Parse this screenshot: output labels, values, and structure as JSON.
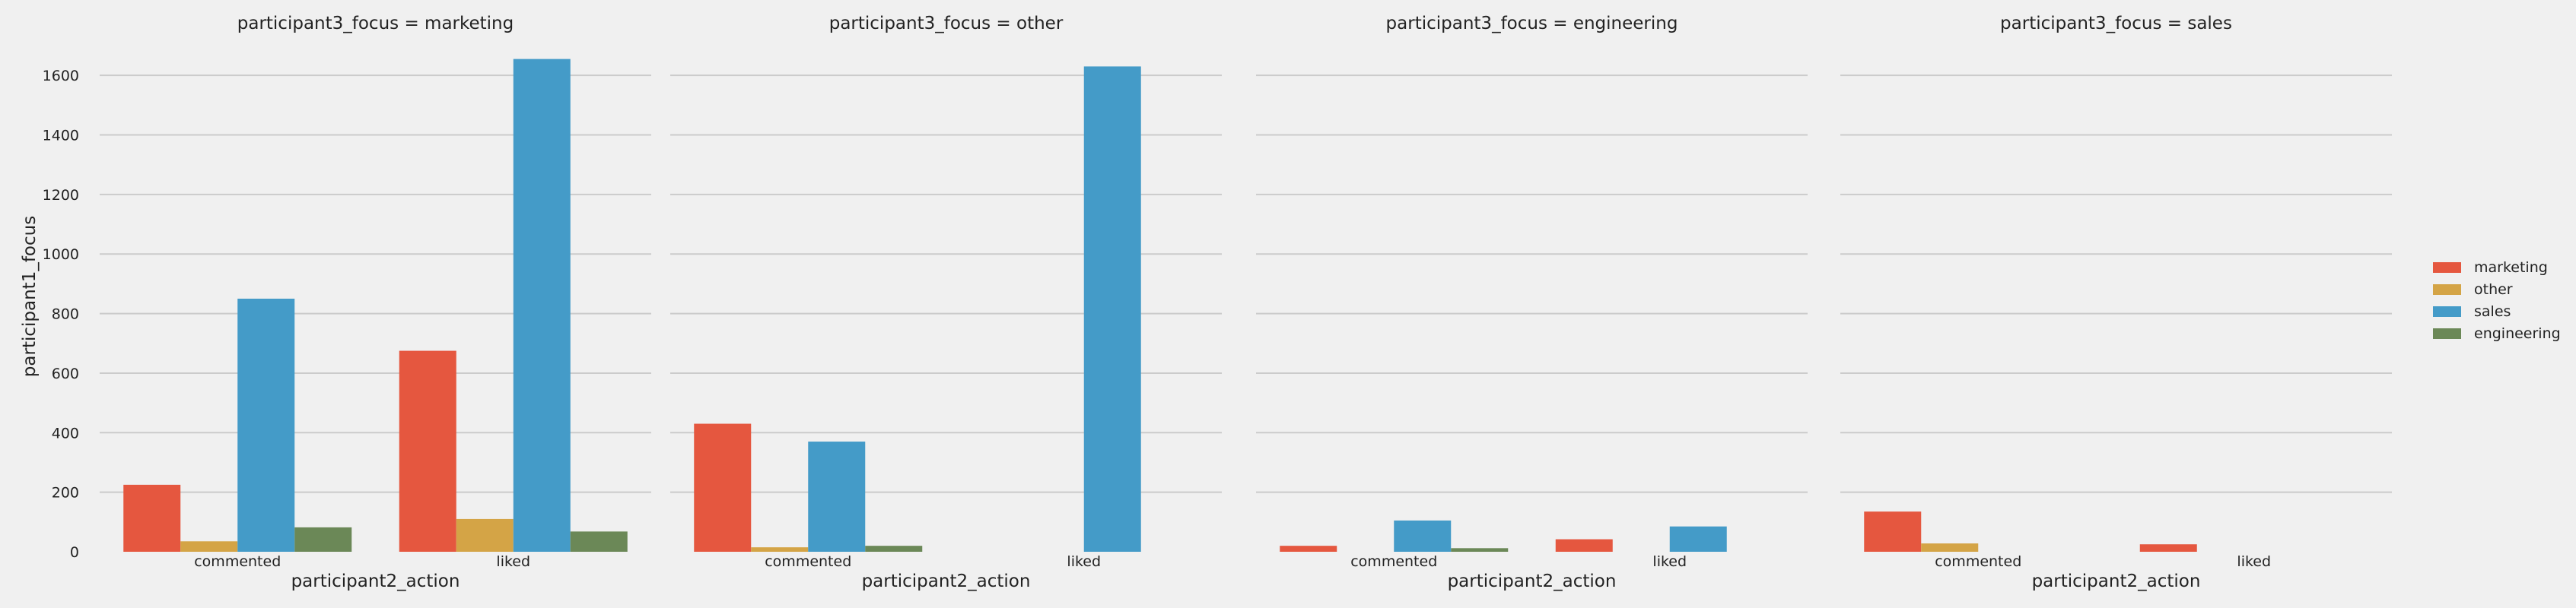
{
  "chart_data": {
    "type": "bar",
    "ylabel": "participant1_focus",
    "xlabel": "participant2_action",
    "ylim": [
      0,
      1700
    ],
    "yticks": [
      "0",
      "200",
      "400",
      "600",
      "800",
      "1000",
      "1200",
      "1400",
      "1600"
    ],
    "grid": true,
    "legend_placement": "right",
    "categories": [
      "commented",
      "liked"
    ],
    "hue_order": [
      "marketing",
      "other",
      "sales",
      "engineering"
    ],
    "colors": {
      "marketing": "#e5573f",
      "other": "#d4a446",
      "sales": "#449bc8",
      "engineering": "#6b8857"
    },
    "panels": [
      {
        "title": "participant3_focus = marketing",
        "series": [
          {
            "name": "sales",
            "values": [
              850,
              1655
            ]
          },
          {
            "name": "marketing",
            "values": [
              225,
              675
            ]
          },
          {
            "name": "other",
            "values": [
              35,
              110
            ]
          },
          {
            "name": "engineering",
            "values": [
              82,
              68
            ]
          }
        ]
      },
      {
        "title": "participant3_focus = other",
        "series": [
          {
            "name": "sales",
            "values": [
              370,
              1630
            ]
          },
          {
            "name": "marketing",
            "values": [
              430,
              0
            ]
          },
          {
            "name": "other",
            "values": [
              15,
              0
            ]
          },
          {
            "name": "engineering",
            "values": [
              20,
              0
            ]
          }
        ]
      },
      {
        "title": "participant3_focus = engineering",
        "series": [
          {
            "name": "sales",
            "values": [
              105,
              85
            ]
          },
          {
            "name": "marketing",
            "values": [
              20,
              42
            ]
          },
          {
            "name": "other",
            "values": [
              0,
              0
            ]
          },
          {
            "name": "engineering",
            "values": [
              12,
              0
            ]
          }
        ]
      },
      {
        "title": "participant3_focus = sales",
        "series": [
          {
            "name": "sales",
            "values": [
              0,
              0
            ]
          },
          {
            "name": "marketing",
            "values": [
              135,
              25
            ]
          },
          {
            "name": "other",
            "values": [
              28,
              0
            ]
          },
          {
            "name": "engineering",
            "values": [
              0,
              0
            ]
          }
        ]
      }
    ]
  }
}
